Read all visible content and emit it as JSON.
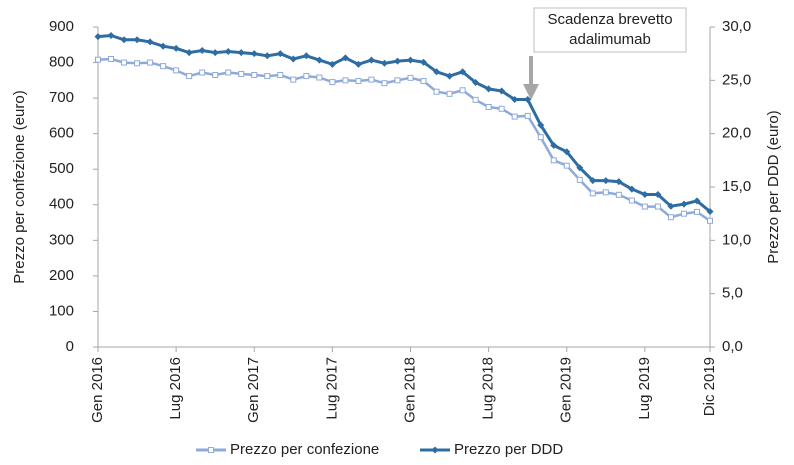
{
  "chart_data": {
    "type": "line",
    "categories": [
      "Gen 2016",
      null,
      null,
      null,
      null,
      null,
      "Lug 2016",
      null,
      null,
      null,
      null,
      null,
      "Gen 2017",
      null,
      null,
      null,
      null,
      null,
      "Lug 2017",
      null,
      null,
      null,
      null,
      null,
      "Gen 2018",
      null,
      null,
      null,
      null,
      null,
      "Lug 2018",
      null,
      null,
      null,
      null,
      null,
      "Gen 2019",
      null,
      null,
      null,
      null,
      null,
      "Lug 2019",
      null,
      null,
      null,
      null,
      "Dic 2019"
    ],
    "series": [
      {
        "name": "Prezzo per confezione",
        "color": "#8eaadb",
        "axis": "y",
        "values": [
          808,
          810,
          800,
          798,
          800,
          790,
          778,
          762,
          772,
          765,
          772,
          768,
          765,
          762,
          765,
          752,
          762,
          758,
          745,
          750,
          748,
          752,
          742,
          750,
          757,
          748,
          718,
          712,
          722,
          695,
          675,
          670,
          648,
          650,
          590,
          525,
          510,
          470,
          432,
          435,
          428,
          412,
          395,
          395,
          365,
          375,
          380,
          355
        ]
      },
      {
        "name": "Prezzo per DDD",
        "color": "#2e6ca4",
        "axis": "y2",
        "values": [
          29.1,
          29.2,
          28.8,
          28.8,
          28.6,
          28.2,
          28.0,
          27.6,
          27.8,
          27.6,
          27.7,
          27.6,
          27.5,
          27.3,
          27.5,
          27.0,
          27.3,
          26.9,
          26.5,
          27.1,
          26.5,
          26.9,
          26.6,
          26.8,
          26.9,
          26.7,
          25.8,
          25.4,
          25.8,
          24.8,
          24.2,
          24.0,
          23.2,
          23.2,
          20.8,
          18.9,
          18.3,
          16.8,
          15.6,
          15.6,
          15.5,
          14.8,
          14.3,
          14.3,
          13.2,
          13.4,
          13.7,
          12.7
        ]
      }
    ],
    "ylabel": "Prezzo per confezione (euro)",
    "y2label": "Prezzo per DDD (euro)",
    "ylim": [
      0,
      900
    ],
    "yticks": [
      0,
      100,
      200,
      300,
      400,
      500,
      600,
      700,
      800,
      900
    ],
    "y2lim": [
      0,
      30
    ],
    "y2ticks": [
      {
        "value": 0,
        "label": "0,0"
      },
      {
        "value": 5,
        "label": "5,0"
      },
      {
        "value": 10,
        "label": "10,0"
      },
      {
        "value": 15,
        "label": "15,0"
      },
      {
        "value": 20,
        "label": "20,0"
      },
      {
        "value": 25,
        "label": "25,0"
      },
      {
        "value": 30,
        "label": "30,0"
      }
    ],
    "annotation": [
      "Scadenza brevetto",
      "adalimumab"
    ],
    "legend": "bottom",
    "grid": false
  }
}
